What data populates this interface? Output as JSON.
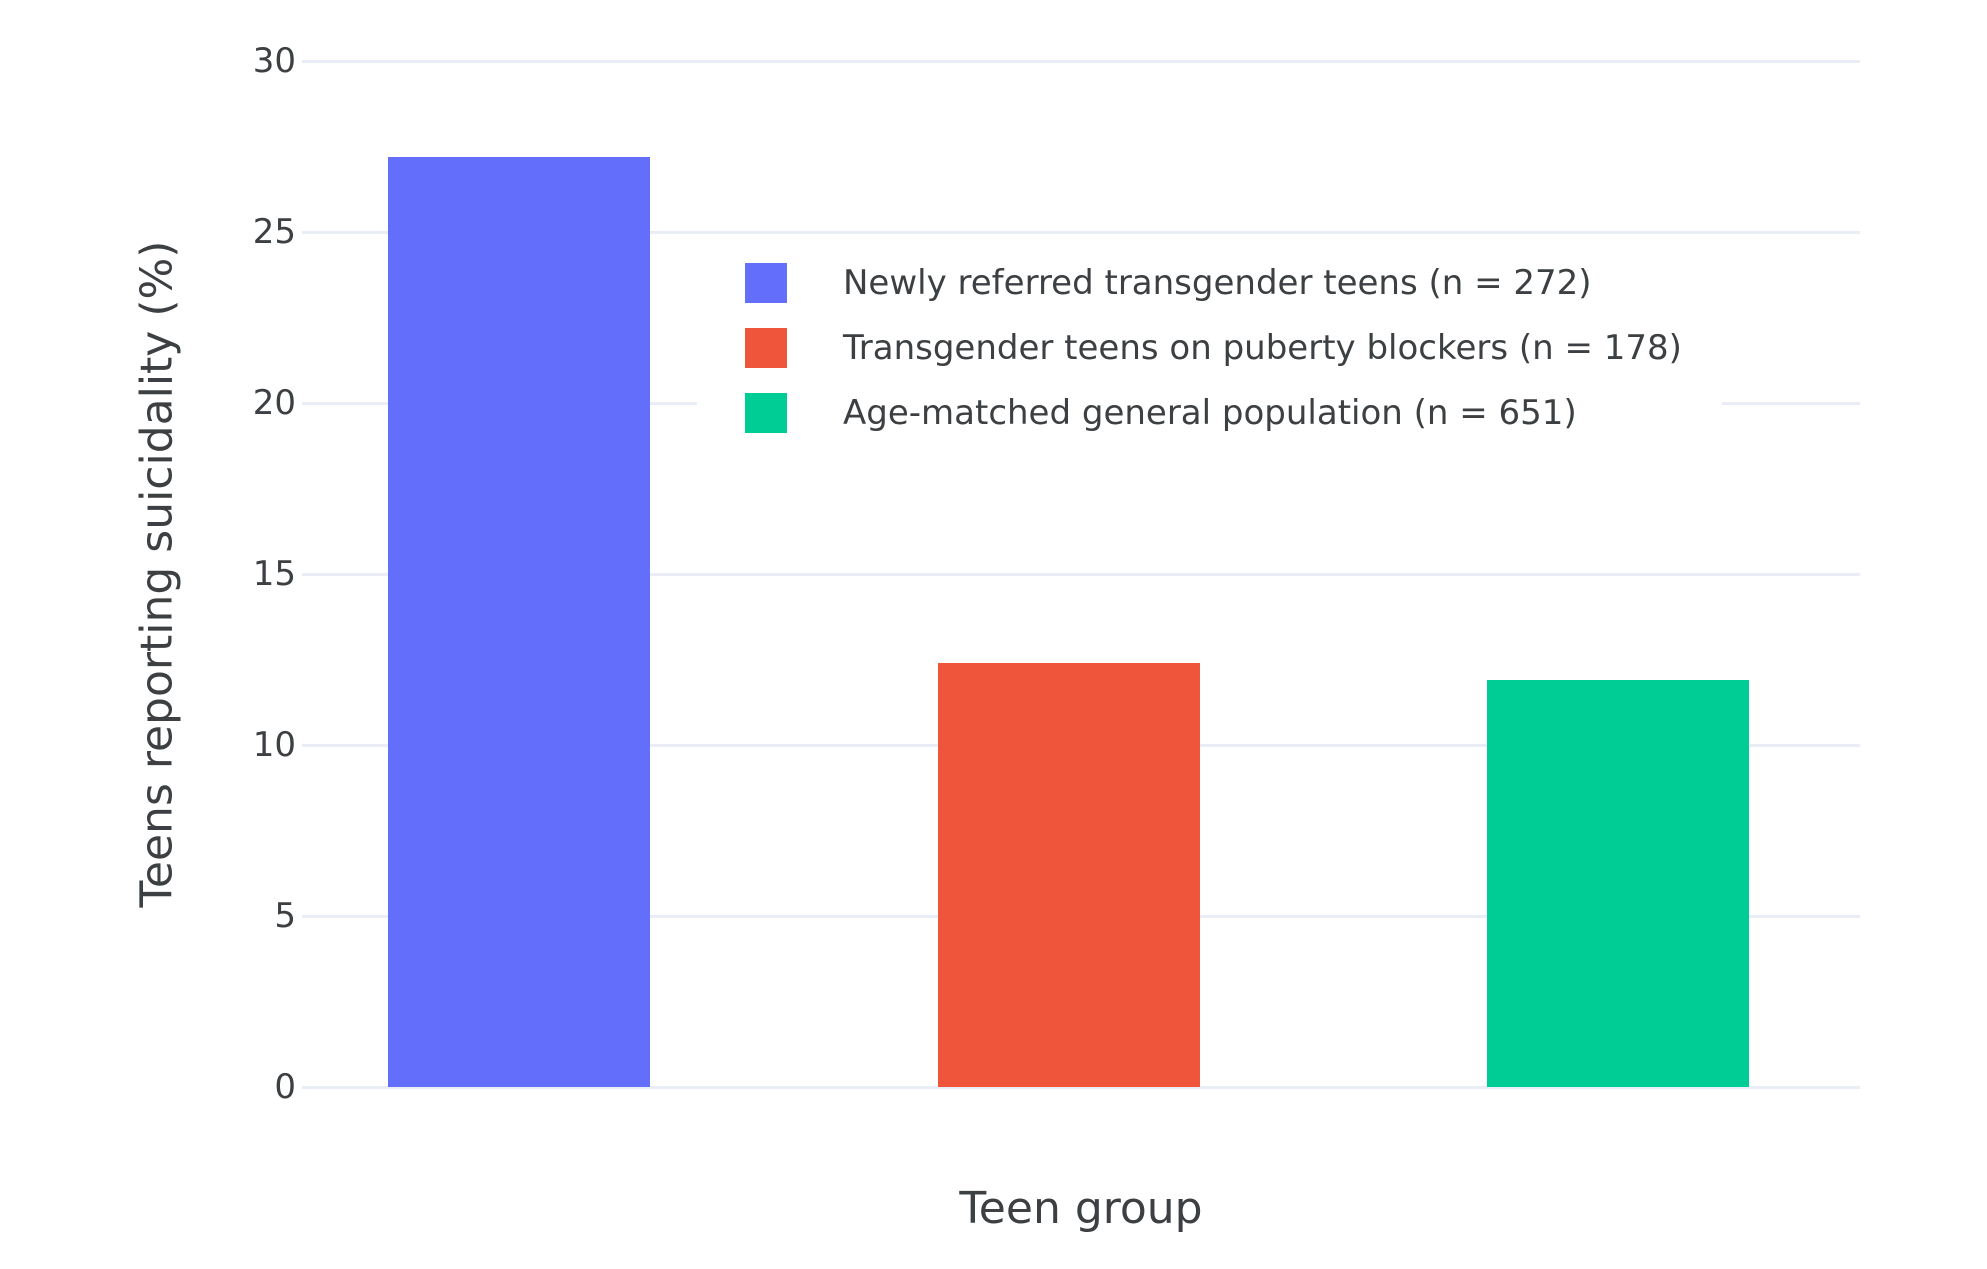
{
  "chart_data": {
    "type": "bar",
    "title": "",
    "xlabel": "Teen group",
    "ylabel": "Teens reporting suicidality (%)",
    "ylim": [
      0,
      30
    ],
    "yticks": [
      0,
      5,
      10,
      15,
      20,
      25,
      30
    ],
    "grid": true,
    "legend_position": "inside top, left-of-center",
    "series": [
      {
        "name": "Newly referred transgender teens (n = 272)",
        "slug": "newly-referred-transgender-teens",
        "value": 27.2,
        "color": "#636EFA"
      },
      {
        "name": "Transgender teens on puberty blockers (n = 178)",
        "slug": "transgender-teens-on-puberty-blockers",
        "value": 12.4,
        "color": "#EF553B"
      },
      {
        "name": "Age-matched general population (n = 651)",
        "slug": "age-matched-general-population",
        "value": 11.9,
        "color": "#00CC96"
      }
    ],
    "colors": {
      "background": "#FFFFFF",
      "gridline": "#E9EDF5",
      "text": "#3C4043"
    }
  }
}
